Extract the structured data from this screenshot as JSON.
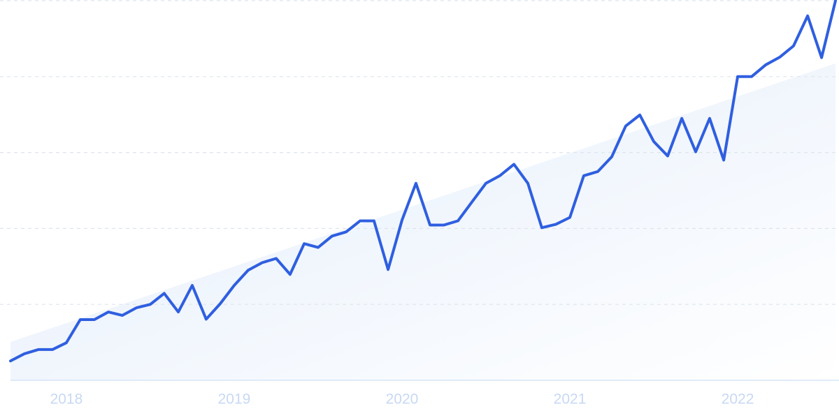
{
  "chart_data": {
    "type": "line",
    "x": [
      2017.667,
      2017.75,
      2017.833,
      2017.917,
      2018,
      2018.083,
      2018.167,
      2018.25,
      2018.333,
      2018.417,
      2018.5,
      2018.583,
      2018.667,
      2018.75,
      2018.833,
      2018.917,
      2019,
      2019.083,
      2019.167,
      2019.25,
      2019.333,
      2019.417,
      2019.5,
      2019.583,
      2019.667,
      2019.75,
      2019.833,
      2019.917,
      2020,
      2020.083,
      2020.167,
      2020.25,
      2020.333,
      2020.417,
      2020.5,
      2020.583,
      2020.667,
      2020.75,
      2020.833,
      2020.917,
      2021,
      2021.083,
      2021.167,
      2021.25,
      2021.333,
      2021.417,
      2021.5,
      2021.583,
      2021.667,
      2021.75,
      2021.833,
      2021.917,
      2022,
      2022.083,
      2022.167,
      2022.25,
      2022.333,
      2022.417,
      2022.5,
      2022.583
    ],
    "values": [
      5.1,
      7.0,
      8.1,
      8.1,
      9.9,
      16.0,
      16.0,
      18.0,
      17.1,
      19.1,
      20.0,
      22.9,
      18.0,
      25.0,
      16.1,
      20.2,
      25.0,
      29.0,
      31.0,
      32.1,
      27.9,
      36.0,
      35.0,
      38.0,
      39.1,
      42.0,
      42.0,
      29.2,
      42.2,
      51.9,
      40.9,
      40.9,
      42.0,
      47.0,
      51.9,
      53.9,
      56.9,
      51.9,
      40.2,
      41.1,
      42.9,
      53.9,
      55.0,
      58.9,
      67.0,
      69.9,
      62.9,
      59.1,
      69.0,
      60.2,
      69.0,
      58.0,
      80.0,
      80.0,
      83.1,
      85.1,
      88.1,
      96.0,
      85.0,
      100
    ],
    "color": "#2f5fe0",
    "trend": [
      10.1,
      83.5
    ],
    "trend_color": "#e3edfb",
    "xlim": [
      2017.667,
      2022.583
    ],
    "xticks": [
      2018,
      2019,
      2020,
      2021,
      2022
    ],
    "ylim": [
      0,
      100
    ],
    "yticks": [
      0,
      20,
      40,
      60,
      80,
      100
    ],
    "grid": true
  }
}
